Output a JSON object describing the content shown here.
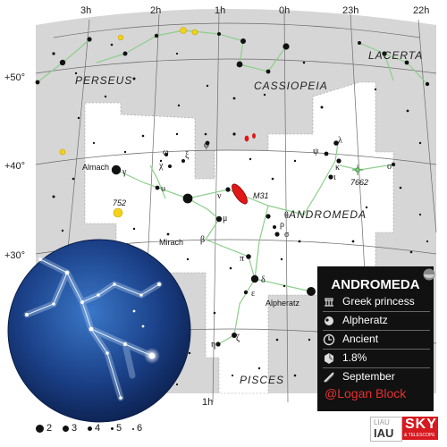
{
  "map": {
    "ra_labels": [
      "3h",
      "2h",
      "1h",
      "0h",
      "23h",
      "22h"
    ],
    "dec_labels": [
      "+50°",
      "+40°",
      "+30°"
    ],
    "bottom_ra_label": "1h",
    "constellations": {
      "main": "ANDROMEDA",
      "neighbors": [
        "PERSEUS",
        "CASSIOPEIA",
        "LACERTA",
        "PISCES"
      ]
    },
    "star_greek": [
      "γ",
      "ω",
      "χ",
      "ξ",
      "φ",
      "υ",
      "ν",
      "μ",
      "β",
      "θ",
      "ρ",
      "σ",
      "π",
      "δ",
      "ε",
      "ζ",
      "η",
      "α",
      "ψ",
      "λ",
      "κ",
      "ι",
      "ο"
    ],
    "star_names": [
      "Almach",
      "Mirach",
      "Alpheratz"
    ],
    "deep_sky": [
      "M31",
      "752",
      "7662"
    ]
  },
  "info_card": {
    "title": "ANDROMEDA",
    "rows": [
      {
        "icon": "mythology-icon",
        "text": "Greek princess"
      },
      {
        "icon": "brightest-star-icon",
        "text": "Alpheratz"
      },
      {
        "icon": "origin-icon",
        "text": "Ancient"
      },
      {
        "icon": "sky-area-icon",
        "text": "1.8%"
      },
      {
        "icon": "best-month-icon",
        "text": "September"
      }
    ],
    "credit": "@Logan Block"
  },
  "legend": {
    "magnitudes": [
      "2",
      "3",
      "4",
      "5",
      "6"
    ]
  },
  "logos": {
    "iau_top": "LIAU",
    "iau": "IAU",
    "sky": "SKY",
    "sky_sub": "& TELESCOPE"
  },
  "colors": {
    "sky_gray": "#d6d6d6",
    "constellation_region": "#ffffff",
    "stick_lines": "#8ccf8c",
    "galaxy": "#e01818",
    "yellow_cluster": "#f2d21a",
    "info_bg": "#111111",
    "credit": "#e53030",
    "globe_dark": "#0b1e4a",
    "globe_light": "#3a77c8"
  }
}
